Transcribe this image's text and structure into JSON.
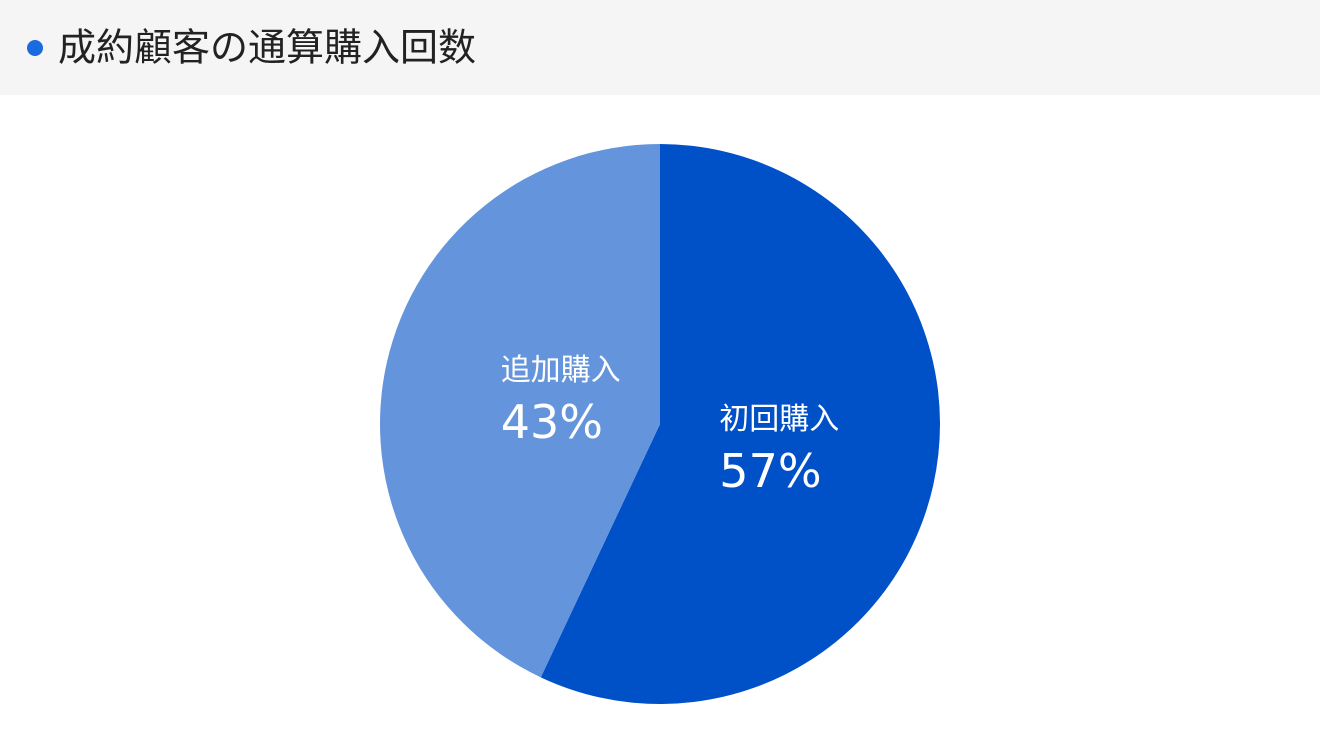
{
  "chart_data": {
    "type": "pie",
    "title": "成約顧客の通算購入回数",
    "categories": [
      "初回購入",
      "追加購入"
    ],
    "values": [
      57,
      43
    ],
    "value_labels": [
      "57%",
      "43%"
    ],
    "colors": [
      "#0050c8",
      "#6495dc"
    ]
  }
}
